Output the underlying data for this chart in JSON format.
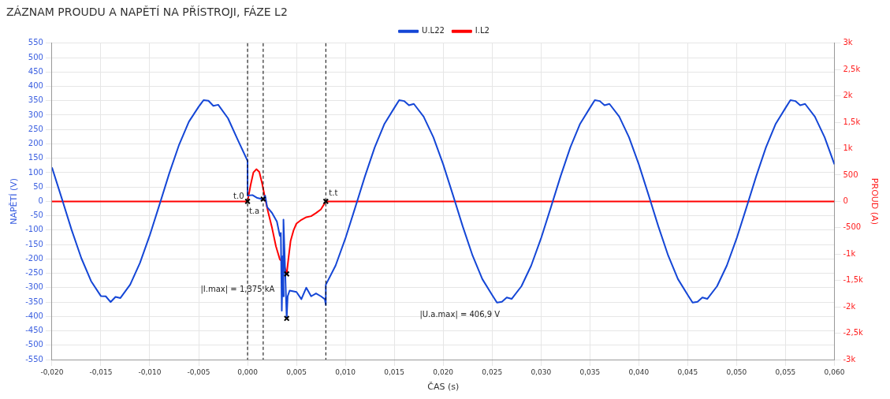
{
  "chart_data": {
    "type": "line",
    "title": "ZÁZNAM PROUDU A NAPĚTÍ NA PŘÍSTROJI, FÁZE L2",
    "xlabel": "ČAS (s)",
    "ylabel": "NAPĚTÍ (V)",
    "y2label": "PROUD (A)",
    "xlim": [
      -0.02,
      0.06
    ],
    "xticks": [
      {
        "value": -0.02,
        "label": "-0,020"
      },
      {
        "value": -0.015,
        "label": "-0,015"
      },
      {
        "value": -0.01,
        "label": "-0,010"
      },
      {
        "value": -0.005,
        "label": "-0,005"
      },
      {
        "value": 0,
        "label": "0,000"
      },
      {
        "value": 0.005,
        "label": "0,005"
      },
      {
        "value": 0.01,
        "label": "0,010"
      },
      {
        "value": 0.015,
        "label": "0,015"
      },
      {
        "value": 0.02,
        "label": "0,020"
      },
      {
        "value": 0.025,
        "label": "0,025"
      },
      {
        "value": 0.03,
        "label": "0,030"
      },
      {
        "value": 0.035,
        "label": "0,035"
      },
      {
        "value": 0.04,
        "label": "0,040"
      },
      {
        "value": 0.045,
        "label": "0,045"
      },
      {
        "value": 0.05,
        "label": "0,050"
      },
      {
        "value": 0.055,
        "label": "0,055"
      },
      {
        "value": 0.06,
        "label": "0,060"
      }
    ],
    "ylim": [
      -550,
      550
    ],
    "yticks": [
      -550,
      -500,
      -450,
      -400,
      -350,
      -300,
      -250,
      -200,
      -150,
      -100,
      -50,
      0,
      50,
      100,
      150,
      200,
      250,
      300,
      350,
      400,
      450,
      500,
      550
    ],
    "y2lim": [
      -3000,
      3000
    ],
    "y2ticks": [
      {
        "value": -3000,
        "label": "-3k"
      },
      {
        "value": -2500,
        "label": "-2,5k"
      },
      {
        "value": -2000,
        "label": "-2k"
      },
      {
        "value": -1500,
        "label": "-1,5k"
      },
      {
        "value": -1000,
        "label": "-1k"
      },
      -500,
      0,
      500,
      {
        "value": 1000,
        "label": "1k"
      },
      {
        "value": 1500,
        "label": "1,5k"
      },
      {
        "value": 2000,
        "label": "2k"
      },
      {
        "value": 2500,
        "label": "2,5k"
      },
      {
        "value": 3000,
        "label": "3k"
      }
    ],
    "grid": true,
    "legend": "top",
    "line_style": "solid",
    "marker": "none",
    "series": [
      {
        "name": "U.L22",
        "color": "#1446d6",
        "axis": "y",
        "x": [
          -0.02,
          -0.019,
          -0.018,
          -0.017,
          -0.016,
          -0.015,
          -0.0145,
          -0.014,
          -0.0135,
          -0.013,
          -0.012,
          -0.011,
          -0.01,
          -0.009,
          -0.008,
          -0.007,
          -0.006,
          -0.005,
          -0.0045,
          -0.004,
          -0.0035,
          -0.003,
          -0.002,
          -0.001,
          0,
          0,
          0.0005,
          0.001,
          0.0015,
          0.0016,
          0.0018,
          0.002,
          0.0025,
          0.003,
          0.0033,
          0.0034,
          0.0035,
          0.0036,
          0.0037,
          0.00367,
          0.0039,
          0.004,
          0.0041,
          0.0043,
          0.005,
          0.0055,
          0.006,
          0.0065,
          0.007,
          0.0075,
          0.0079,
          0.008,
          0.008,
          0.009,
          0.01,
          0.011,
          0.012,
          0.013,
          0.014,
          0.015,
          0.0155,
          0.016,
          0.0165,
          0.017,
          0.018,
          0.019,
          0.02,
          0.021,
          0.022,
          0.023,
          0.024,
          0.025,
          0.0255,
          0.026,
          0.0265,
          0.027,
          0.028,
          0.029,
          0.03,
          0.031,
          0.032,
          0.033,
          0.034,
          0.035,
          0.0355,
          0.036,
          0.0365,
          0.037,
          0.038,
          0.039,
          0.04,
          0.041,
          0.042,
          0.043,
          0.044,
          0.045,
          0.0455,
          0.046,
          0.0465,
          0.047,
          0.048,
          0.049,
          0.05,
          0.051,
          0.052,
          0.053,
          0.054,
          0.055,
          0.0555,
          0.056,
          0.0565,
          0.057,
          0.058,
          0.059,
          0.06
        ],
        "values": [
          118,
          11,
          -98,
          -197,
          -277,
          -329,
          -330,
          -350,
          -332,
          -336,
          -289,
          -214,
          -118,
          -11,
          98,
          197,
          277,
          329,
          352,
          350,
          332,
          336,
          289,
          214,
          141,
          20,
          22,
          12,
          8,
          8,
          20,
          -20,
          -40,
          -70,
          -120,
          -110,
          -380,
          -190,
          -330,
          -63,
          -300,
          -406.9,
          -330,
          -310,
          -315,
          -340,
          -300,
          -330,
          -320,
          -330,
          -340,
          -360,
          -290,
          -223,
          -129,
          -22,
          87,
          188,
          270,
          325,
          352,
          349,
          334,
          339,
          295,
          223,
          129,
          22,
          -87,
          -188,
          -270,
          -325,
          -352,
          -349,
          -334,
          -339,
          -295,
          -223,
          -129,
          -22,
          87,
          188,
          270,
          325,
          352,
          349,
          334,
          339,
          295,
          223,
          129,
          22,
          -87,
          -188,
          -270,
          -325,
          -352,
          -349,
          -334,
          -339,
          -295,
          -223,
          -129,
          -22,
          87,
          188,
          270,
          325,
          352,
          349,
          334,
          339,
          295,
          223,
          129
        ]
      },
      {
        "name": "I.L2",
        "color": "#ff0000",
        "axis": "y2",
        "x": [
          -0.02,
          0,
          0.0003,
          0.0006,
          0.0009,
          0.0012,
          0.0015,
          0.0018,
          0.0021,
          0.0025,
          0.0029,
          0.0033,
          0.0036,
          0.0038,
          0.004,
          0.0042,
          0.0044,
          0.0047,
          0.005,
          0.0055,
          0.006,
          0.0065,
          0.007,
          0.0075,
          0.008,
          0.06
        ],
        "values": [
          0,
          0,
          300,
          550,
          610,
          560,
          330,
          50,
          -200,
          -500,
          -850,
          -1100,
          -1150,
          -1250,
          -1375,
          -1050,
          -750,
          -550,
          -420,
          -350,
          -300,
          -280,
          -220,
          -150,
          0,
          0
        ]
      },
      {
        "type": "scatter",
        "color": "#000000",
        "marker": "cross",
        "axis": "y",
        "x": [
          0,
          0.0016,
          0.004,
          0.008
        ],
        "values": [
          0,
          8,
          -406.9,
          0
        ]
      },
      {
        "type": "scatter",
        "color": "#000000",
        "marker": "cross",
        "axis": "y2",
        "x": [
          0.004
        ],
        "values": [
          -1375
        ]
      }
    ],
    "ref_lines": [
      {
        "axis": "x",
        "value": 0,
        "color": "#000000",
        "line_style": "dashed"
      },
      {
        "axis": "x",
        "value": 0.0016,
        "color": "#000000",
        "line_style": "dashed"
      },
      {
        "axis": "x",
        "value": 0.008,
        "color": "#000000",
        "line_style": "dashed"
      }
    ],
    "annotations": [
      {
        "text": "t.0",
        "x": 0,
        "y": 0
      },
      {
        "text": "t.a",
        "x": 0.0016,
        "y": 8
      },
      {
        "text": "t.t",
        "x": 0.008,
        "y": 0
      },
      "|I.max| = 1,375 kA",
      "|U.a.max| = 406,9 V"
    ]
  }
}
